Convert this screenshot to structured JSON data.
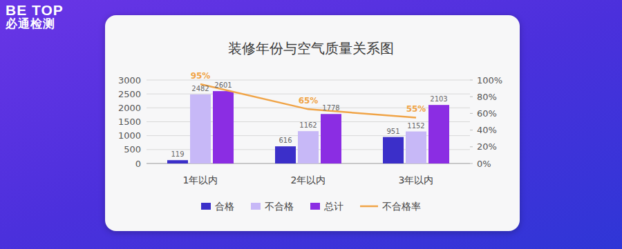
{
  "brand": {
    "name": "BE TOP",
    "subtitle": "必通检测"
  },
  "chart_data": {
    "type": "bar",
    "title": "装修年份与空气质量关系图",
    "categories": [
      "1年以内",
      "2年以内",
      "3年以内"
    ],
    "series": [
      {
        "name": "合格",
        "color": "#3b2fc9",
        "values": [
          119,
          616,
          951
        ]
      },
      {
        "name": "不合格",
        "color": "#c7b8f7",
        "values": [
          2482,
          1162,
          1152
        ]
      },
      {
        "name": "总计",
        "color": "#8b2de3",
        "values": [
          2601,
          1778,
          2103
        ]
      },
      {
        "name": "不合格率",
        "type": "line",
        "axis": "y2",
        "color": "#f0a447",
        "values": [
          95,
          65,
          55
        ],
        "value_labels": [
          "95%",
          "65%",
          "55%"
        ]
      }
    ],
    "ylim": [
      0,
      3000
    ],
    "yticks": [
      0,
      500,
      1000,
      1500,
      2000,
      2500,
      3000
    ],
    "y2lim": [
      0,
      100
    ],
    "y2ticks": [
      {
        "value": 0,
        "label": "0%"
      },
      {
        "value": 20,
        "label": "20%"
      },
      {
        "value": 40,
        "label": "40%"
      },
      {
        "value": 60,
        "label": "60%"
      },
      {
        "value": 80,
        "label": "80%"
      },
      {
        "value": 100,
        "label": "100%"
      }
    ],
    "grid": true,
    "data_labels": true,
    "legend": "bottom"
  }
}
